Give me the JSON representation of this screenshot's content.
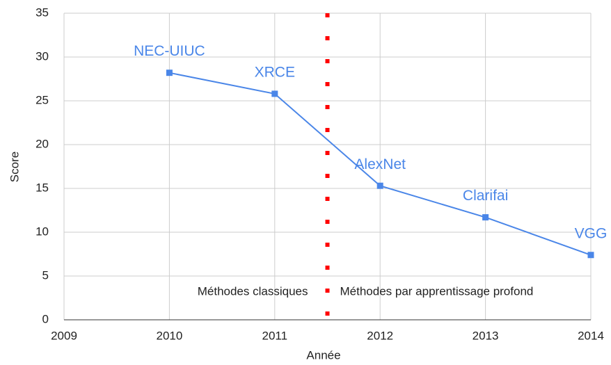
{
  "chart_data": {
    "type": "line",
    "x_label": "Année",
    "y_label": "Score",
    "x": [
      2010,
      2011,
      2012,
      2013,
      2014
    ],
    "series": [
      {
        "name": "Score",
        "color": "#4a86e8",
        "values": [
          28.2,
          25.8,
          15.3,
          11.7,
          7.4
        ],
        "point_labels": [
          "NEC-UIUC",
          "XRCE",
          "AlexNet",
          "Clarifai",
          "VGG"
        ]
      }
    ],
    "xlim": [
      2009,
      2014
    ],
    "xticks": [
      2009,
      2010,
      2011,
      2012,
      2013,
      2014
    ],
    "ylim": [
      0,
      35
    ],
    "yticks": [
      0,
      5,
      10,
      15,
      20,
      25,
      30,
      35
    ],
    "grid": true,
    "divider": {
      "x": 2011.5,
      "color": "#ff0000",
      "left_text": "Méthodes classiques",
      "right_text": "Méthodes par apprentissage profond"
    }
  }
}
